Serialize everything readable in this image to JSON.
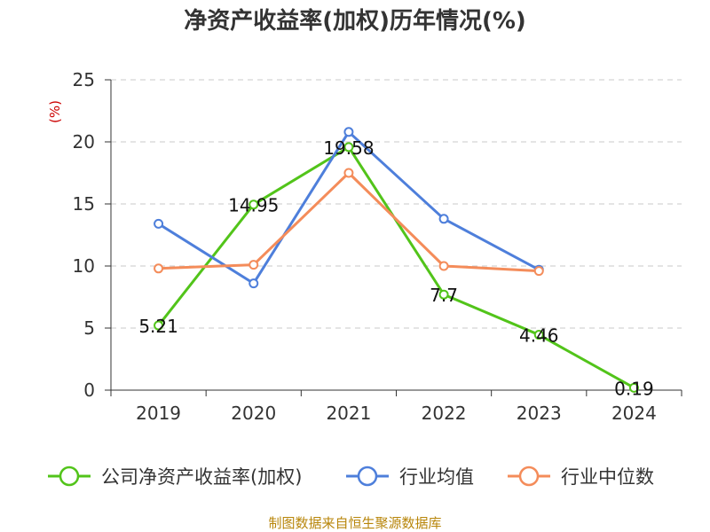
{
  "chart_data": {
    "type": "line",
    "title": "净资产收益率(加权)历年情况(%)",
    "ylabel": "(%)",
    "categories": [
      "2019",
      "2020",
      "2021",
      "2022",
      "2023",
      "2024"
    ],
    "y_ticks": [
      "0",
      "5",
      "10",
      "15",
      "20",
      "25"
    ],
    "ylim": [
      0,
      25
    ],
    "grid": "horizontal-dashed",
    "legend_position": "bottom",
    "series": [
      {
        "name": "公司净资产收益率(加权)",
        "color": "#52c41a",
        "values": [
          5.21,
          14.95,
          19.58,
          7.7,
          4.46,
          0.19
        ],
        "labels": [
          "5.21",
          "14.95",
          "19.58",
          "7.7",
          "4.46",
          "0.19"
        ]
      },
      {
        "name": "行业均值",
        "color": "#4e7fdb",
        "values": [
          13.4,
          8.6,
          20.8,
          13.8,
          9.7,
          null
        ]
      },
      {
        "name": "行业中位数",
        "color": "#f48c5a",
        "values": [
          9.8,
          10.1,
          17.5,
          10.0,
          9.6,
          null
        ]
      }
    ],
    "source": "制图数据来自恒生聚源数据库"
  }
}
